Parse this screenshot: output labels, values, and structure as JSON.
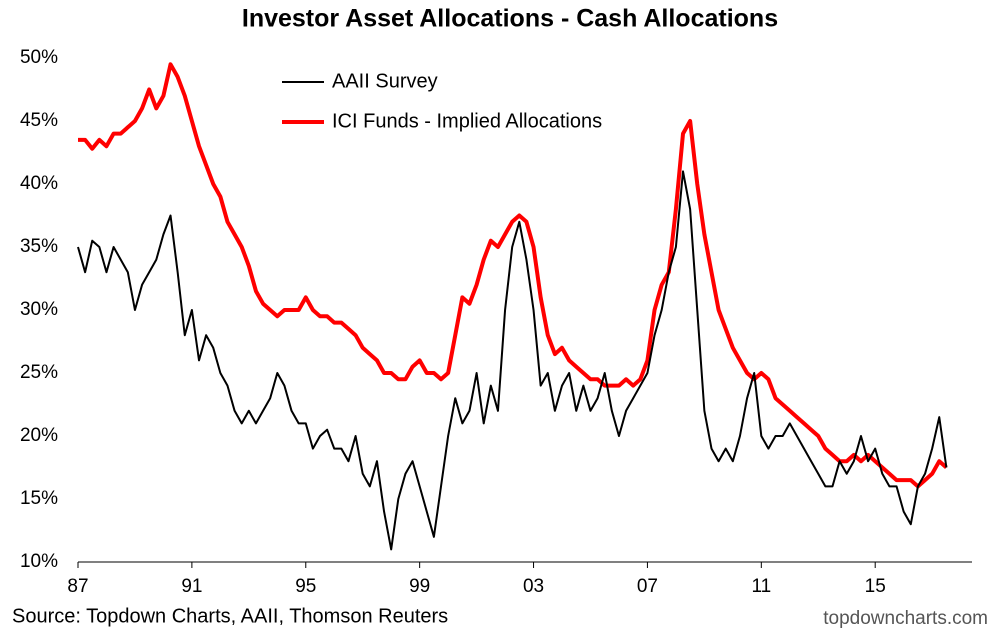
{
  "chart_data": {
    "type": "line",
    "title": "Investor Asset Allocations - Cash Allocations",
    "source": "Source: Topdown Charts, AAII, Thomson Reuters",
    "watermark": "topdowncharts.com",
    "x": [
      1987,
      1987.25,
      1987.5,
      1987.75,
      1988,
      1988.25,
      1988.5,
      1988.75,
      1989,
      1989.25,
      1989.5,
      1989.75,
      1990,
      1990.25,
      1990.5,
      1990.75,
      1991,
      1991.25,
      1991.5,
      1991.75,
      1992,
      1992.25,
      1992.5,
      1992.75,
      1993,
      1993.25,
      1993.5,
      1993.75,
      1994,
      1994.25,
      1994.5,
      1994.75,
      1995,
      1995.25,
      1995.5,
      1995.75,
      1996,
      1996.25,
      1996.5,
      1996.75,
      1997,
      1997.25,
      1997.5,
      1997.75,
      1998,
      1998.25,
      1998.5,
      1998.75,
      1999,
      1999.25,
      1999.5,
      1999.75,
      2000,
      2000.25,
      2000.5,
      2000.75,
      2001,
      2001.25,
      2001.5,
      2001.75,
      2002,
      2002.25,
      2002.5,
      2002.75,
      2003,
      2003.25,
      2003.5,
      2003.75,
      2004,
      2004.25,
      2004.5,
      2004.75,
      2005,
      2005.25,
      2005.5,
      2005.75,
      2006,
      2006.25,
      2006.5,
      2006.75,
      2007,
      2007.25,
      2007.5,
      2007.75,
      2008,
      2008.25,
      2008.5,
      2008.75,
      2009,
      2009.25,
      2009.5,
      2009.75,
      2010,
      2010.25,
      2010.5,
      2010.75,
      2011,
      2011.25,
      2011.5,
      2011.75,
      2012,
      2012.25,
      2012.5,
      2012.75,
      2013,
      2013.25,
      2013.5,
      2013.75,
      2014,
      2014.25,
      2014.5,
      2014.75,
      2015,
      2015.25,
      2015.5,
      2015.75,
      2016,
      2016.25,
      2016.5,
      2016.75,
      2017,
      2017.25,
      2017.5
    ],
    "series": [
      {
        "name": "AAII Survey",
        "color": "#000000",
        "values": [
          35,
          33,
          35.5,
          35,
          33,
          35,
          34,
          33,
          30,
          32,
          33,
          34,
          36,
          37.5,
          33,
          28,
          30,
          26,
          28,
          27,
          25,
          24,
          22,
          21,
          22,
          21,
          22,
          23,
          25,
          24,
          22,
          21,
          21,
          19,
          20,
          20.5,
          19,
          19,
          18,
          20,
          17,
          16,
          18,
          14,
          11,
          15,
          17,
          18,
          16,
          14,
          12,
          16,
          20,
          23,
          21,
          22,
          25,
          21,
          24,
          22,
          30,
          35,
          37,
          34,
          30,
          24,
          25,
          22,
          24,
          25,
          22,
          24,
          22,
          23,
          25,
          22,
          20,
          22,
          23,
          24,
          25,
          28,
          30,
          33,
          35,
          41,
          38,
          30,
          22,
          19,
          18,
          19,
          18,
          20,
          23,
          25,
          20,
          19,
          20,
          20,
          21,
          20,
          19,
          18,
          17,
          16,
          16,
          18,
          17,
          18,
          20,
          18,
          19,
          17,
          16,
          16,
          14,
          13,
          16,
          17,
          19,
          21.5,
          17.5
        ]
      },
      {
        "name": "ICI Funds - Implied Allocations",
        "color": "#ff0000",
        "values": [
          43.5,
          43.5,
          42.8,
          43.5,
          43,
          44,
          44,
          44.5,
          45,
          46,
          47.5,
          46,
          47,
          49.5,
          48.5,
          47,
          45,
          43,
          41.5,
          40,
          39,
          37,
          36,
          35,
          33.5,
          31.5,
          30.5,
          30,
          29.5,
          30,
          30,
          30,
          31,
          30,
          29.5,
          29.5,
          29,
          29,
          28.5,
          28,
          27,
          26.5,
          26,
          25,
          25,
          24.5,
          24.5,
          25.5,
          26,
          25,
          25,
          24.5,
          25,
          28,
          31,
          30.5,
          32,
          34,
          35.5,
          35,
          36,
          37,
          37.5,
          37,
          35,
          31,
          28,
          26.5,
          27,
          26,
          25.5,
          25,
          24.5,
          24.5,
          24,
          24,
          24,
          24.5,
          24,
          24.5,
          26,
          30,
          32,
          33,
          38,
          44,
          45,
          40,
          36,
          33,
          30,
          28.5,
          27,
          26,
          25,
          24.5,
          25,
          24.5,
          23,
          22.5,
          22,
          21.5,
          21,
          20.5,
          20,
          19,
          18.5,
          18,
          18,
          18.5,
          18,
          18.5,
          18,
          17.5,
          17,
          16.5,
          16.5,
          16.5,
          16,
          16.5,
          17,
          18,
          17.5
        ]
      }
    ],
    "xlim": [
      1987,
      2018.4
    ],
    "xticks": [
      {
        "value": 1987,
        "label": "87"
      },
      {
        "value": 1991,
        "label": "91"
      },
      {
        "value": 1995,
        "label": "95"
      },
      {
        "value": 1999,
        "label": "99"
      },
      {
        "value": 2003,
        "label": "03"
      },
      {
        "value": 2007,
        "label": "07"
      },
      {
        "value": 2011,
        "label": "11"
      },
      {
        "value": 2015,
        "label": "15"
      }
    ],
    "ylim": [
      10,
      50
    ],
    "yticks": [
      {
        "value": 10,
        "label": "10%"
      },
      {
        "value": 15,
        "label": "15%"
      },
      {
        "value": 20,
        "label": "20%"
      },
      {
        "value": 25,
        "label": "25%"
      },
      {
        "value": 30,
        "label": "30%"
      },
      {
        "value": 35,
        "label": "35%"
      },
      {
        "value": 40,
        "label": "40%"
      },
      {
        "value": 45,
        "label": "45%"
      },
      {
        "value": 50,
        "label": "50%"
      }
    ],
    "grid": false
  }
}
